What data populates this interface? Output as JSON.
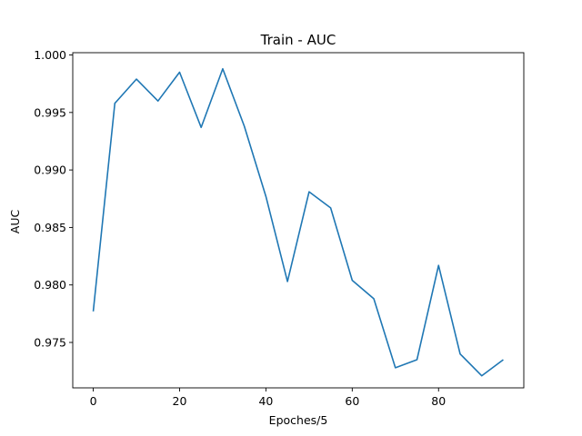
{
  "chart_data": {
    "type": "line",
    "title": "Train - AUC",
    "xlabel": "Epoches/5",
    "ylabel": "AUC",
    "xlim": [
      -4.75,
      99.75
    ],
    "ylim": [
      0.97105,
      1.0002
    ],
    "grid": false,
    "xticks": [
      0,
      20,
      40,
      60,
      80
    ],
    "xtick_labels": [
      "0",
      "20",
      "40",
      "60",
      "80"
    ],
    "yticks": [
      0.975,
      0.98,
      0.985,
      0.99,
      0.995,
      1.0
    ],
    "ytick_labels": [
      "0.975",
      "0.980",
      "0.985",
      "0.990",
      "0.995",
      "1.000"
    ],
    "series": [
      {
        "name": "AUC",
        "color": "#1f77b4",
        "x": [
          0,
          5,
          10,
          15,
          20,
          25,
          30,
          35,
          40,
          45,
          50,
          55,
          60,
          65,
          70,
          75,
          80,
          85,
          90,
          95
        ],
        "values": [
          0.9777,
          0.9958,
          0.9979,
          0.996,
          0.9985,
          0.9937,
          0.9988,
          0.9938,
          0.9877,
          0.9803,
          0.9881,
          0.9867,
          0.9804,
          0.9788,
          0.9728,
          0.9735,
          0.9817,
          0.974,
          0.9721,
          0.9735
        ]
      }
    ]
  }
}
